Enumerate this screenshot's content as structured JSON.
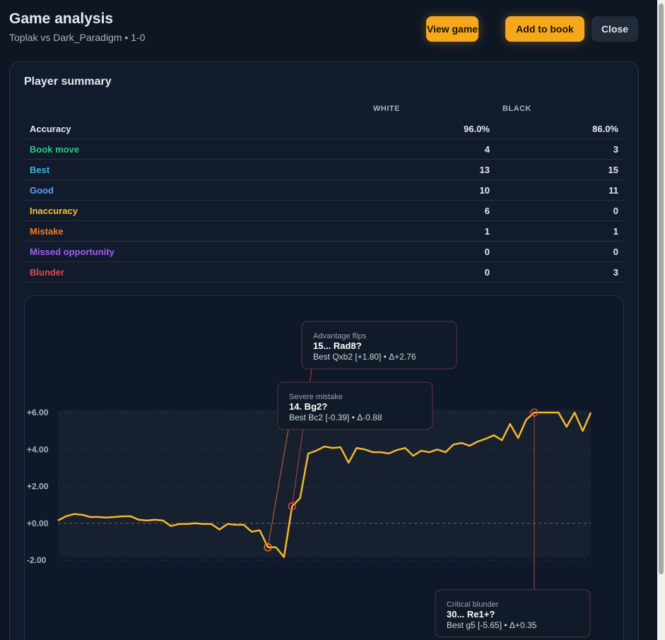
{
  "header": {
    "title": "Game analysis",
    "subtitle": "Toplak vs Dark_Paradigm • 1-0",
    "buttons": [
      "View game",
      "Add to book",
      "Close"
    ]
  },
  "summary": {
    "title": "Player summary",
    "columns": [
      "WHITE",
      "BLACK"
    ],
    "rows": [
      {
        "label": "Accuracy",
        "white": "96.0%",
        "black": "86.0%",
        "color": "#e6e9ef"
      },
      {
        "label": "Book move",
        "white": "4",
        "black": "3",
        "color": "#2fc48a"
      },
      {
        "label": "Best",
        "white": "13",
        "black": "15",
        "color": "#35b8f0"
      },
      {
        "label": "Good",
        "white": "10",
        "black": "11",
        "color": "#5aa2f5"
      },
      {
        "label": "Inaccuracy",
        "white": "6",
        "black": "0",
        "color": "#f5c32c"
      },
      {
        "label": "Mistake",
        "white": "1",
        "black": "1",
        "color": "#f07a2a"
      },
      {
        "label": "Missed opportunity",
        "white": "0",
        "black": "0",
        "color": "#a35ef0"
      },
      {
        "label": "Blunder",
        "white": "0",
        "black": "3",
        "color": "#e5484d"
      }
    ]
  },
  "chart_data": {
    "type": "line",
    "color": "#f5b82e",
    "x": [
      1,
      2,
      3,
      4,
      5,
      6,
      7,
      8,
      9,
      10,
      11,
      12,
      13,
      14,
      15,
      16,
      17,
      18,
      19,
      20,
      21,
      22,
      23,
      24,
      25,
      26,
      27,
      28,
      29,
      30,
      31,
      32,
      33,
      34,
      35,
      36,
      37,
      38,
      39,
      40,
      41,
      42,
      43,
      44,
      45,
      46,
      47,
      48,
      49,
      50,
      51,
      52,
      53,
      54,
      55,
      56,
      57,
      58,
      59,
      60,
      61,
      62,
      63,
      64,
      65,
      66,
      67
    ],
    "values": [
      0.15,
      0.38,
      0.5,
      0.46,
      0.34,
      0.34,
      0.31,
      0.34,
      0.38,
      0.38,
      0.19,
      0.15,
      0.19,
      0.15,
      -0.15,
      -0.04,
      -0.04,
      0,
      -0.04,
      -0.04,
      -0.34,
      -0.04,
      -0.08,
      -0.08,
      -0.46,
      -0.38,
      -1.3,
      -1.3,
      -1.83,
      0.92,
      1.37,
      3.78,
      3.93,
      4.16,
      4.08,
      4.12,
      3.28,
      4.08,
      4.0,
      3.85,
      3.85,
      3.78,
      3.97,
      4.08,
      3.66,
      3.93,
      3.85,
      4.0,
      3.85,
      4.27,
      4.35,
      4.2,
      4.43,
      4.58,
      4.77,
      4.5,
      5.38,
      4.62,
      5.61,
      6,
      6,
      6,
      6,
      5.23,
      6,
      5,
      6
    ],
    "xlim": [
      1,
      67
    ],
    "ylim": [
      -2,
      6
    ],
    "yticks": [
      {
        "value": -2,
        "label": "-2.00"
      },
      {
        "value": 0,
        "label": "+0.00"
      },
      {
        "value": 2,
        "label": "+2.00"
      },
      {
        "value": 4,
        "label": "+4.00"
      },
      {
        "value": 6,
        "label": "+6.00"
      }
    ],
    "grid": true,
    "annotations": [
      {
        "x": 30,
        "label": "Advantage flips",
        "move": "15... Rad8?",
        "detail": "Best Qxb2 [+1.80] • Δ+2.76",
        "color": "#e0434f"
      },
      {
        "x": 27,
        "label": "Severe mistake",
        "move": "14. Bg2?",
        "detail": "Best Bc2 [-0.39] • Δ-0.88",
        "color": "#f07a2a"
      },
      {
        "x": 60,
        "label": "Critical blunder",
        "move": "30... Re1+?",
        "detail": "Best g5 [-5.65] • Δ+0.35",
        "color": "#e0434f"
      }
    ]
  }
}
